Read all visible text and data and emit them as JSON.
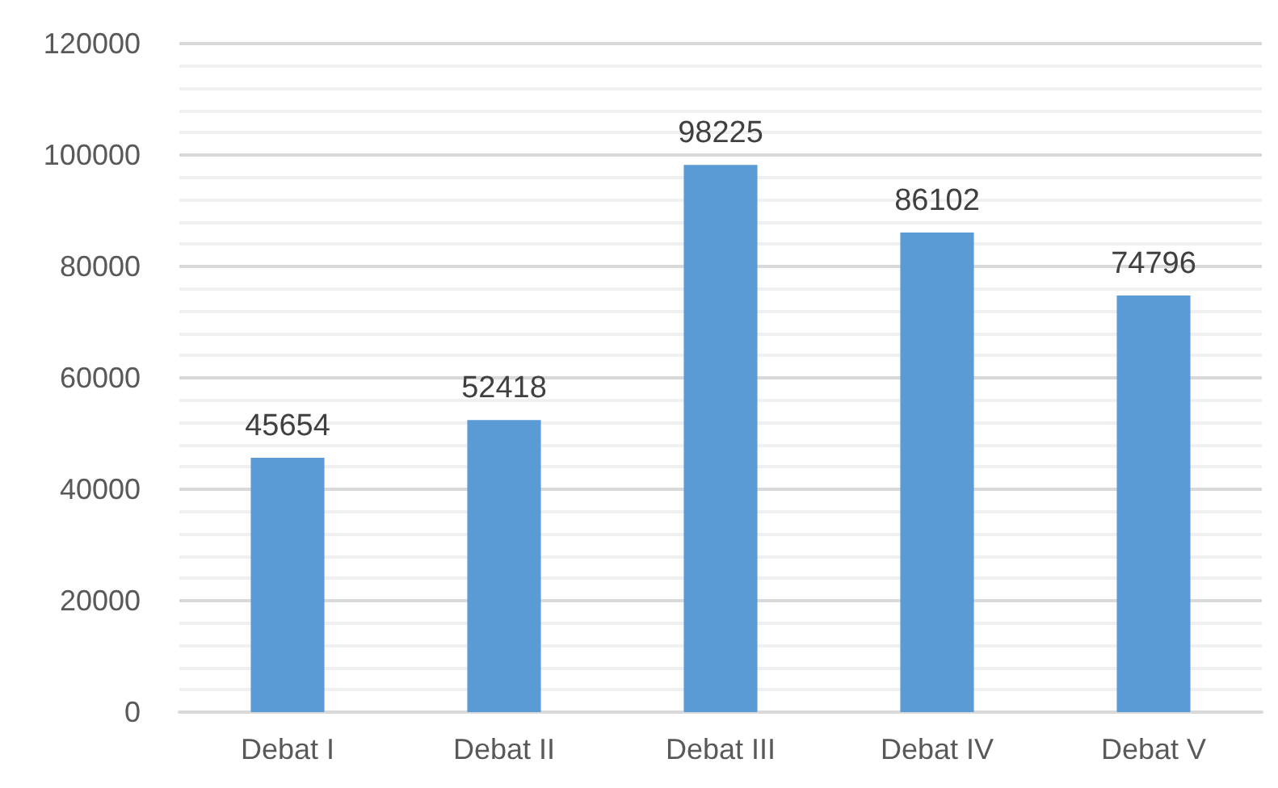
{
  "chart_data": {
    "type": "bar",
    "categories": [
      "Debat I",
      "Debat II",
      "Debat III",
      "Debat IV",
      "Debat V"
    ],
    "values": [
      45654,
      52418,
      98225,
      86102,
      74796
    ],
    "color": "#5b9bd5",
    "ylim": [
      0,
      120000
    ],
    "yticks": [
      0,
      20000,
      40000,
      60000,
      80000,
      100000,
      120000
    ],
    "grid": "y",
    "data_labels": true
  }
}
